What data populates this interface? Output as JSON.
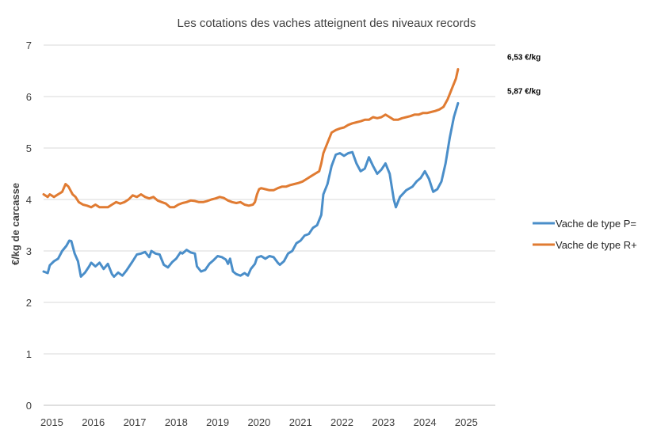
{
  "chart_data": {
    "type": "line",
    "title": "Les cotations des vaches atteignent des niveaux records",
    "ylabel": "€/kg de carcasse",
    "xlabel": "",
    "ylim": [
      0,
      7
    ],
    "xlim": [
      2014.85,
      2025.75
    ],
    "y_ticks": [
      "0",
      "1",
      "2",
      "3",
      "4",
      "5",
      "6",
      "7"
    ],
    "x_ticks": [
      "2015",
      "2016",
      "2017",
      "2018",
      "2019",
      "2020",
      "2021",
      "2022",
      "2023",
      "2024",
      "2025"
    ],
    "grid": true,
    "legend_position": "right",
    "annotations": [
      {
        "text": "6,53 €/kg",
        "series": "Vache de type R+"
      },
      {
        "text": "5,87 €/kg",
        "series": "Vache de type P="
      }
    ],
    "series": [
      {
        "name": "Vache de type P=",
        "color": "#4a8ec9",
        "points": [
          [
            2014.85,
            2.6
          ],
          [
            2014.95,
            2.57
          ],
          [
            2015.0,
            2.72
          ],
          [
            2015.1,
            2.8
          ],
          [
            2015.2,
            2.85
          ],
          [
            2015.3,
            3.0
          ],
          [
            2015.4,
            3.1
          ],
          [
            2015.47,
            3.2
          ],
          [
            2015.52,
            3.19
          ],
          [
            2015.6,
            2.95
          ],
          [
            2015.68,
            2.8
          ],
          [
            2015.75,
            2.5
          ],
          [
            2015.85,
            2.58
          ],
          [
            2015.95,
            2.7
          ],
          [
            2016.0,
            2.77
          ],
          [
            2016.1,
            2.7
          ],
          [
            2016.2,
            2.77
          ],
          [
            2016.3,
            2.65
          ],
          [
            2016.4,
            2.75
          ],
          [
            2016.5,
            2.55
          ],
          [
            2016.55,
            2.5
          ],
          [
            2016.65,
            2.58
          ],
          [
            2016.75,
            2.52
          ],
          [
            2016.85,
            2.62
          ],
          [
            2017.0,
            2.8
          ],
          [
            2017.1,
            2.93
          ],
          [
            2017.2,
            2.95
          ],
          [
            2017.3,
            2.98
          ],
          [
            2017.4,
            2.88
          ],
          [
            2017.45,
            3.0
          ],
          [
            2017.55,
            2.95
          ],
          [
            2017.65,
            2.93
          ],
          [
            2017.75,
            2.73
          ],
          [
            2017.85,
            2.68
          ],
          [
            2017.95,
            2.78
          ],
          [
            2018.05,
            2.85
          ],
          [
            2018.15,
            2.97
          ],
          [
            2018.2,
            2.95
          ],
          [
            2018.3,
            3.02
          ],
          [
            2018.4,
            2.97
          ],
          [
            2018.5,
            2.95
          ],
          [
            2018.55,
            2.7
          ],
          [
            2018.65,
            2.6
          ],
          [
            2018.75,
            2.63
          ],
          [
            2018.85,
            2.75
          ],
          [
            2018.95,
            2.82
          ],
          [
            2019.05,
            2.9
          ],
          [
            2019.15,
            2.88
          ],
          [
            2019.25,
            2.83
          ],
          [
            2019.3,
            2.75
          ],
          [
            2019.35,
            2.85
          ],
          [
            2019.42,
            2.6
          ],
          [
            2019.5,
            2.55
          ],
          [
            2019.6,
            2.52
          ],
          [
            2019.7,
            2.57
          ],
          [
            2019.78,
            2.52
          ],
          [
            2019.85,
            2.65
          ],
          [
            2019.95,
            2.75
          ],
          [
            2020.0,
            2.87
          ],
          [
            2020.1,
            2.9
          ],
          [
            2020.2,
            2.85
          ],
          [
            2020.3,
            2.9
          ],
          [
            2020.4,
            2.88
          ],
          [
            2020.5,
            2.77
          ],
          [
            2020.55,
            2.73
          ],
          [
            2020.65,
            2.8
          ],
          [
            2020.75,
            2.95
          ],
          [
            2020.85,
            3.0
          ],
          [
            2020.95,
            3.15
          ],
          [
            2021.05,
            3.2
          ],
          [
            2021.15,
            3.3
          ],
          [
            2021.25,
            3.33
          ],
          [
            2021.35,
            3.45
          ],
          [
            2021.45,
            3.5
          ],
          [
            2021.55,
            3.7
          ],
          [
            2021.6,
            4.1
          ],
          [
            2021.7,
            4.3
          ],
          [
            2021.8,
            4.65
          ],
          [
            2021.9,
            4.87
          ],
          [
            2022.0,
            4.9
          ],
          [
            2022.1,
            4.85
          ],
          [
            2022.2,
            4.9
          ],
          [
            2022.3,
            4.92
          ],
          [
            2022.4,
            4.7
          ],
          [
            2022.5,
            4.55
          ],
          [
            2022.6,
            4.6
          ],
          [
            2022.7,
            4.82
          ],
          [
            2022.8,
            4.65
          ],
          [
            2022.9,
            4.5
          ],
          [
            2023.0,
            4.58
          ],
          [
            2023.1,
            4.7
          ],
          [
            2023.2,
            4.5
          ],
          [
            2023.3,
            4.0
          ],
          [
            2023.35,
            3.85
          ],
          [
            2023.45,
            4.05
          ],
          [
            2023.6,
            4.18
          ],
          [
            2023.75,
            4.25
          ],
          [
            2023.85,
            4.35
          ],
          [
            2023.95,
            4.42
          ],
          [
            2024.05,
            4.55
          ],
          [
            2024.15,
            4.4
          ],
          [
            2024.25,
            4.15
          ],
          [
            2024.35,
            4.2
          ],
          [
            2024.45,
            4.35
          ],
          [
            2024.55,
            4.7
          ],
          [
            2024.65,
            5.2
          ],
          [
            2024.75,
            5.6
          ],
          [
            2024.85,
            5.87
          ]
        ]
      },
      {
        "name": "Vache de type R+",
        "color": "#e07b32",
        "points": [
          [
            2014.85,
            4.1
          ],
          [
            2014.95,
            4.05
          ],
          [
            2015.0,
            4.1
          ],
          [
            2015.1,
            4.05
          ],
          [
            2015.2,
            4.1
          ],
          [
            2015.3,
            4.15
          ],
          [
            2015.38,
            4.3
          ],
          [
            2015.45,
            4.25
          ],
          [
            2015.55,
            4.1
          ],
          [
            2015.62,
            4.05
          ],
          [
            2015.7,
            3.95
          ],
          [
            2015.8,
            3.9
          ],
          [
            2015.9,
            3.88
          ],
          [
            2016.0,
            3.85
          ],
          [
            2016.1,
            3.9
          ],
          [
            2016.2,
            3.85
          ],
          [
            2016.3,
            3.85
          ],
          [
            2016.4,
            3.85
          ],
          [
            2016.5,
            3.9
          ],
          [
            2016.6,
            3.95
          ],
          [
            2016.7,
            3.92
          ],
          [
            2016.8,
            3.95
          ],
          [
            2016.9,
            4.0
          ],
          [
            2017.0,
            4.08
          ],
          [
            2017.1,
            4.05
          ],
          [
            2017.2,
            4.1
          ],
          [
            2017.3,
            4.05
          ],
          [
            2017.4,
            4.02
          ],
          [
            2017.5,
            4.05
          ],
          [
            2017.6,
            3.98
          ],
          [
            2017.7,
            3.95
          ],
          [
            2017.8,
            3.92
          ],
          [
            2017.9,
            3.85
          ],
          [
            2018.0,
            3.85
          ],
          [
            2018.1,
            3.9
          ],
          [
            2018.2,
            3.93
          ],
          [
            2018.3,
            3.95
          ],
          [
            2018.4,
            3.98
          ],
          [
            2018.5,
            3.97
          ],
          [
            2018.6,
            3.95
          ],
          [
            2018.7,
            3.95
          ],
          [
            2018.8,
            3.97
          ],
          [
            2018.9,
            4.0
          ],
          [
            2019.0,
            4.02
          ],
          [
            2019.1,
            4.05
          ],
          [
            2019.2,
            4.03
          ],
          [
            2019.3,
            3.98
          ],
          [
            2019.4,
            3.95
          ],
          [
            2019.5,
            3.93
          ],
          [
            2019.6,
            3.95
          ],
          [
            2019.7,
            3.9
          ],
          [
            2019.8,
            3.88
          ],
          [
            2019.9,
            3.9
          ],
          [
            2019.95,
            3.95
          ],
          [
            2020.0,
            4.1
          ],
          [
            2020.05,
            4.2
          ],
          [
            2020.1,
            4.22
          ],
          [
            2020.2,
            4.2
          ],
          [
            2020.3,
            4.18
          ],
          [
            2020.4,
            4.18
          ],
          [
            2020.5,
            4.22
          ],
          [
            2020.6,
            4.25
          ],
          [
            2020.7,
            4.25
          ],
          [
            2020.8,
            4.28
          ],
          [
            2020.9,
            4.3
          ],
          [
            2021.0,
            4.32
          ],
          [
            2021.1,
            4.35
          ],
          [
            2021.2,
            4.4
          ],
          [
            2021.3,
            4.45
          ],
          [
            2021.4,
            4.5
          ],
          [
            2021.5,
            4.55
          ],
          [
            2021.55,
            4.7
          ],
          [
            2021.6,
            4.9
          ],
          [
            2021.7,
            5.1
          ],
          [
            2021.8,
            5.3
          ],
          [
            2021.9,
            5.35
          ],
          [
            2022.0,
            5.38
          ],
          [
            2022.1,
            5.4
          ],
          [
            2022.2,
            5.45
          ],
          [
            2022.3,
            5.48
          ],
          [
            2022.4,
            5.5
          ],
          [
            2022.5,
            5.52
          ],
          [
            2022.6,
            5.55
          ],
          [
            2022.7,
            5.55
          ],
          [
            2022.8,
            5.6
          ],
          [
            2022.9,
            5.58
          ],
          [
            2023.0,
            5.6
          ],
          [
            2023.1,
            5.65
          ],
          [
            2023.2,
            5.6
          ],
          [
            2023.3,
            5.55
          ],
          [
            2023.4,
            5.55
          ],
          [
            2023.5,
            5.58
          ],
          [
            2023.6,
            5.6
          ],
          [
            2023.7,
            5.62
          ],
          [
            2023.8,
            5.65
          ],
          [
            2023.9,
            5.65
          ],
          [
            2024.0,
            5.68
          ],
          [
            2024.1,
            5.68
          ],
          [
            2024.2,
            5.7
          ],
          [
            2024.3,
            5.72
          ],
          [
            2024.4,
            5.75
          ],
          [
            2024.5,
            5.8
          ],
          [
            2024.6,
            5.95
          ],
          [
            2024.7,
            6.15
          ],
          [
            2024.8,
            6.35
          ],
          [
            2024.85,
            6.53
          ]
        ]
      }
    ]
  }
}
